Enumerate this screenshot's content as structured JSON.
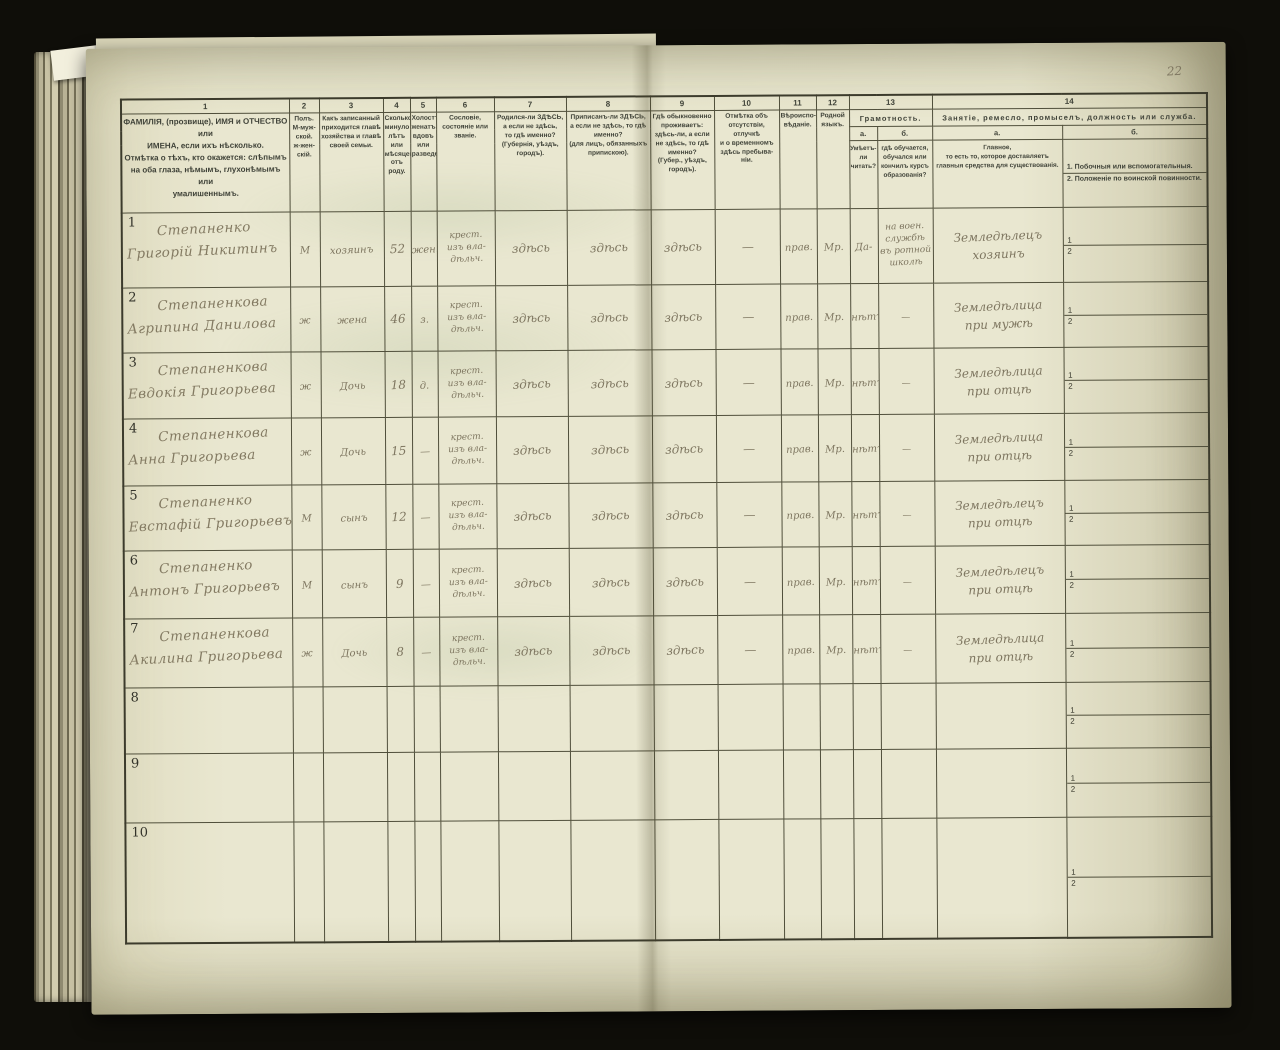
{
  "page": {
    "number": "22"
  },
  "header": {
    "cols": {
      "c1": {
        "num": "1",
        "text": "ФАМИЛІЯ, (прозвище), ИМЯ и ОТЧЕСТВО или\nИМЕНА, если ихъ нѣсколько.\nОтмѣтка о тѣхъ, кто окажется: слѣпымъ\nна оба глаза, нѣмымъ, глухонѣмымъ или\nумалишеннымъ."
      },
      "c2": {
        "num": "2",
        "text": "Полъ.\nМ-муж-\nской.\nж-жен-\nскій."
      },
      "c3": {
        "num": "3",
        "text": "Какъ записанный приходится главѣ хозяйства и главѣ своей семьи."
      },
      "c4": {
        "num": "4",
        "text": "Сколько минуло лѣтъ или мѣсяцевъ отъ роду."
      },
      "c5": {
        "num": "5",
        "text": "Холостъ, женатъ, вдовъ или разведенъ."
      },
      "c6": {
        "num": "6",
        "text": "Сословіе, состояніе или званіе."
      },
      "c7": {
        "num": "7",
        "text": "Родился-ли ЗДѢСЬ,\nа если не здѣсь,\nто гдѣ именно?\n(Губернія, уѣздъ, городъ)."
      },
      "c8": {
        "num": "8",
        "text": "Приписанъ-ли ЗДѢСЬ,\nа если не здѣсь, то гдѣ\nименно?\n(для лицъ, обязанныхъ\nприпискою)."
      },
      "c9": {
        "num": "9",
        "text": "Гдѣ обыкновенно\nпроживаетъ:\nздѣсь-ли, а если\nне здѣсь, то гдѣ\nименно?\n(Губер., уѣздъ, городъ)."
      },
      "c10": {
        "num": "10",
        "text": "Отмѣтка объ\nотсутствіи, отлучкѣ\nи о временномъ\nздѣсь пребыва-\nніи."
      },
      "c11": {
        "num": "11",
        "text": "Вѣроиспо-\nвѣданіе."
      },
      "c12": {
        "num": "12",
        "text": "Родной\nязыкъ."
      },
      "c13": {
        "num": "13",
        "group": "Грамотность.",
        "a_num": "а.",
        "a_text": "Умѣетъ-\nли\nчитать?",
        "b_num": "б.",
        "b_text": "гдѣ обучается,\nобучался или\nкончилъ курсъ\nобразованія?"
      },
      "c14": {
        "num": "14",
        "group": "Занятіе, ремесло, промыселъ, должность или служба.",
        "a_num": "а.",
        "a_text": "Главное,\nто есть то, которое доставляетъ\nглавныя средства для существованія.",
        "b_num": "б.",
        "b_text_1": "1.  Побочныя или вспомогательныя.",
        "b_text_2": "2.  Положеніе по воинской повинности."
      }
    }
  },
  "side_labels": [
    "1",
    "2"
  ],
  "rows": [
    {
      "num": "1",
      "name1": "Степаненко",
      "name2": "Григорій Никитинъ",
      "sex": "М",
      "relation": "хозяинъ",
      "age": "52",
      "marital": "жен.",
      "estate": "крест.\nизъ вла-\nдѣльч.",
      "born": "здѣсь",
      "registered": "здѣсь",
      "resides": "здѣсь",
      "absence": "—",
      "religion": "прав.",
      "language": "Мр.",
      "literate": "Да-",
      "education": "на воен.\nслужбѣ\nвъ ротной\nшколѣ",
      "occupation": "Земледѣлецъ\nхозяинъ"
    },
    {
      "num": "2",
      "name1": "Степаненкова",
      "name2": "Агрипина Данилова",
      "sex": "ж",
      "relation": "жена",
      "age": "46",
      "marital": "з.",
      "estate": "крест.\nизъ вла-\nдѣльч.",
      "born": "здѣсь",
      "registered": "здѣсь",
      "resides": "здѣсь",
      "absence": "—",
      "religion": "прав.",
      "language": "Мр.",
      "literate": "нѣтъ",
      "education": "—",
      "occupation": "Земледѣлица\nпри мужѣ"
    },
    {
      "num": "3",
      "name1": "Степаненкова",
      "name2": "Евдокія Григорьева",
      "sex": "ж",
      "relation": "Дочь",
      "age": "18",
      "marital": "д.",
      "estate": "крест.\nизъ вла-\nдѣльч.",
      "born": "здѣсь",
      "registered": "здѣсь",
      "resides": "здѣсь",
      "absence": "—",
      "religion": "прав.",
      "language": "Мр.",
      "literate": "нѣтъ",
      "education": "—",
      "occupation": "Земледѣлица\nпри отцѣ"
    },
    {
      "num": "4",
      "name1": "Степаненкова",
      "name2": "Анна Григорьева",
      "sex": "ж",
      "relation": "Дочь",
      "age": "15",
      "marital": "—",
      "estate": "крест.\nизъ вла-\nдѣльч.",
      "born": "здѣсь",
      "registered": "здѣсь",
      "resides": "здѣсь",
      "absence": "—",
      "religion": "прав.",
      "language": "Мр.",
      "literate": "нѣтъ",
      "education": "—",
      "occupation": "Земледѣлица\nпри отцѣ"
    },
    {
      "num": "5",
      "name1": "Степаненко",
      "name2": "Евстафій Григорьевъ",
      "sex": "М",
      "relation": "сынъ",
      "age": "12",
      "marital": "—",
      "estate": "крест.\nизъ вла-\nдѣльч.",
      "born": "здѣсь",
      "registered": "здѣсь",
      "resides": "здѣсь",
      "absence": "—",
      "religion": "прав.",
      "language": "Мр.",
      "literate": "нѣтъ",
      "education": "—",
      "occupation": "Земледѣлецъ\nпри отцѣ"
    },
    {
      "num": "6",
      "name1": "Степаненко",
      "name2": "Антонъ Григорьевъ",
      "sex": "М",
      "relation": "сынъ",
      "age": "9",
      "marital": "—",
      "estate": "крест.\nизъ вла-\nдѣльч.",
      "born": "здѣсь",
      "registered": "здѣсь",
      "resides": "здѣсь",
      "absence": "—",
      "religion": "прав.",
      "language": "Мр.",
      "literate": "нѣтъ",
      "education": "—",
      "occupation": "Земледѣлецъ\nпри отцѣ"
    },
    {
      "num": "7",
      "name1": "Степаненкова",
      "name2": "Акилина Григорьева",
      "sex": "ж",
      "relation": "Дочь",
      "age": "8",
      "marital": "—",
      "estate": "крест.\nизъ вла-\nдѣльч.",
      "born": "здѣсь",
      "registered": "здѣсь",
      "resides": "здѣсь",
      "absence": "—",
      "religion": "прав.",
      "language": "Мр.",
      "literate": "нѣтъ",
      "education": "—",
      "occupation": "Земледѣлица\nпри отцѣ"
    },
    {
      "num": "8",
      "name1": "",
      "name2": "",
      "sex": "",
      "relation": "",
      "age": "",
      "marital": "",
      "estate": "",
      "born": "",
      "registered": "",
      "resides": "",
      "absence": "",
      "religion": "",
      "language": "",
      "literate": "",
      "education": "",
      "occupation": ""
    },
    {
      "num": "9",
      "name1": "",
      "name2": "",
      "sex": "",
      "relation": "",
      "age": "",
      "marital": "",
      "estate": "",
      "born": "",
      "registered": "",
      "resides": "",
      "absence": "",
      "religion": "",
      "language": "",
      "literate": "",
      "education": "",
      "occupation": ""
    },
    {
      "num": "10",
      "name1": "",
      "name2": "",
      "sex": "",
      "relation": "",
      "age": "",
      "marital": "",
      "estate": "",
      "born": "",
      "registered": "",
      "resides": "",
      "absence": "",
      "religion": "",
      "language": "",
      "literate": "",
      "education": "",
      "occupation": ""
    }
  ]
}
